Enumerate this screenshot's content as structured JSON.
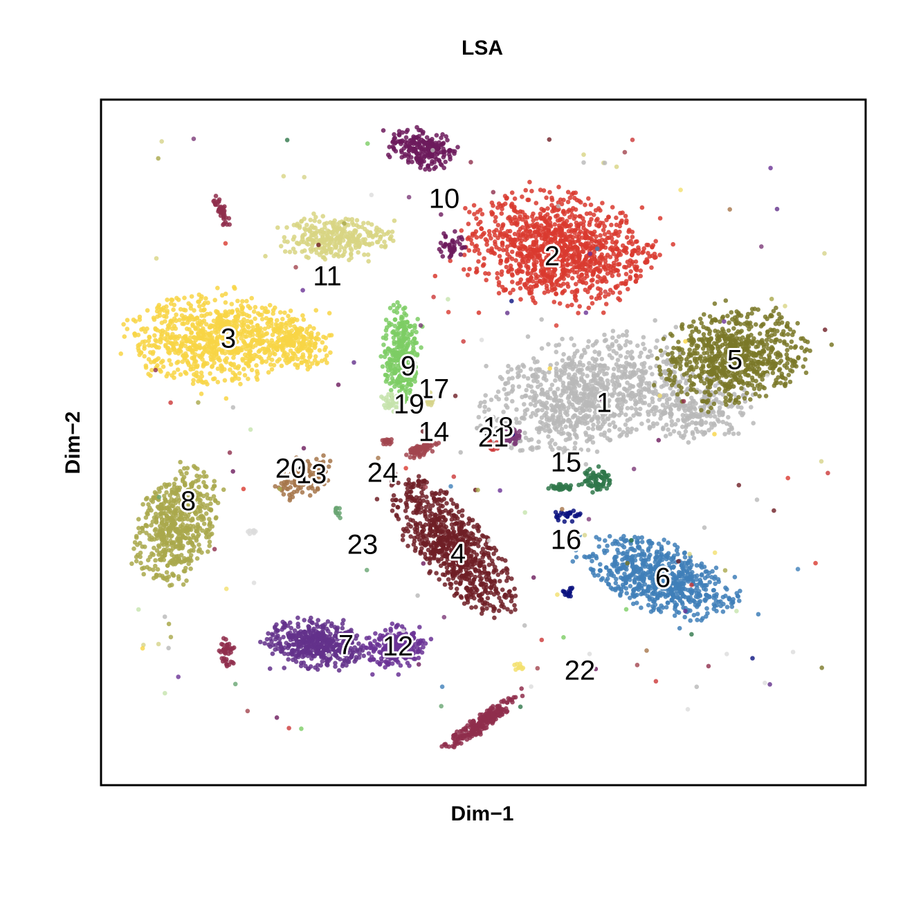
{
  "chart_data": {
    "type": "scatter",
    "title": "LSA",
    "xlabel": "Dim−1",
    "ylabel": "Dim−2",
    "grid": false,
    "legend": "none",
    "clusters": [
      {
        "name": "1",
        "color": "#b8b8b8",
        "x": 0.66,
        "y": 0.56
      },
      {
        "name": "2",
        "color": "#d93a2f",
        "x": 0.59,
        "y": 0.77
      },
      {
        "name": "3",
        "color": "#f8d545",
        "x": 0.17,
        "y": 0.65
      },
      {
        "name": "4",
        "color": "#6e1e26",
        "x": 0.47,
        "y": 0.33
      },
      {
        "name": "5",
        "color": "#7a7828",
        "x": 0.83,
        "y": 0.62
      },
      {
        "name": "6",
        "color": "#3f7fb9",
        "x": 0.74,
        "y": 0.3
      },
      {
        "name": "7",
        "color": "#63318b",
        "x": 0.32,
        "y": 0.2
      },
      {
        "name": "8",
        "color": "#a9a84b",
        "x": 0.11,
        "y": 0.38
      },
      {
        "name": "9",
        "color": "#7ccd64",
        "x": 0.39,
        "y": 0.61
      },
      {
        "name": "10",
        "color": "#6c1a5c",
        "x": 0.41,
        "y": 0.91
      },
      {
        "name": "11",
        "color": "#d8d583",
        "x": 0.29,
        "y": 0.78
      },
      {
        "name": "12",
        "color": "#6a3295",
        "x": 0.39,
        "y": 0.2
      },
      {
        "name": "13",
        "color": "#a6764a",
        "x": 0.26,
        "y": 0.45
      },
      {
        "name": "14",
        "color": "#a2454f",
        "x": 0.42,
        "y": 0.49
      },
      {
        "name": "15",
        "color": "#2f774a",
        "x": 0.63,
        "y": 0.44
      },
      {
        "name": "16",
        "color": "#0a127f",
        "x": 0.61,
        "y": 0.35
      },
      {
        "name": "17",
        "color": "#d6d38a",
        "x": 0.43,
        "y": 0.57
      },
      {
        "name": "18",
        "color": "#7c3a78",
        "x": 0.53,
        "y": 0.51
      },
      {
        "name": "19",
        "color": "#c5e3ac",
        "x": 0.4,
        "y": 0.54
      },
      {
        "name": "20",
        "color": "#dcdcdc",
        "x": 0.25,
        "y": 0.46
      },
      {
        "name": "21",
        "color": "#cc3737",
        "x": 0.52,
        "y": 0.5
      },
      {
        "name": "22",
        "color": "#f3e06e",
        "x": 0.63,
        "y": 0.17
      },
      {
        "name": "23",
        "color": "#68a572",
        "x": 0.34,
        "y": 0.35
      },
      {
        "name": "24",
        "color": "#8f2e4c",
        "x": 0.37,
        "y": 0.45
      }
    ]
  }
}
